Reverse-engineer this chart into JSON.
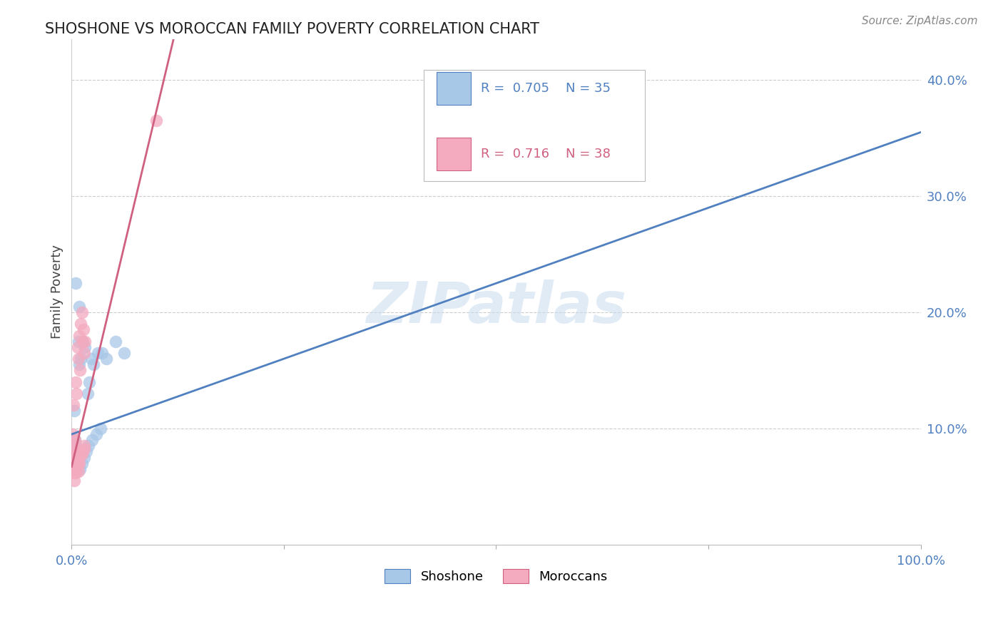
{
  "title": "SHOSHONE VS MOROCCAN FAMILY POVERTY CORRELATION CHART",
  "source": "Source: ZipAtlas.com",
  "ylabel": "Family Poverty",
  "xlim": [
    0.0,
    1.0
  ],
  "ylim": [
    0.0,
    0.435
  ],
  "shoshone_color": "#A8C8E8",
  "moroccan_color": "#F4AABF",
  "shoshone_line_color": "#5080C0",
  "moroccan_line_color": "#D06080",
  "legend_R_shoshone": "0.705",
  "legend_N_shoshone": "35",
  "legend_R_moroccan": "0.716",
  "legend_N_moroccan": "38",
  "watermark_text": "ZIPatlas",
  "background_color": "#FFFFFF",
  "grid_color": "#CCCCCC",
  "shoshone_x": [
    0.003,
    0.005,
    0.004,
    0.009,
    0.013,
    0.011,
    0.008,
    0.005,
    0.016,
    0.021,
    0.026,
    0.031,
    0.019,
    0.023,
    0.036,
    0.041,
    0.052,
    0.062,
    0.009,
    0.004,
    0.003,
    0.007,
    0.01,
    0.012,
    0.015,
    0.017,
    0.02,
    0.024,
    0.029,
    0.034,
    0.006,
    0.004,
    0.003,
    0.007,
    0.005
  ],
  "shoshone_y": [
    0.115,
    0.08,
    0.09,
    0.155,
    0.175,
    0.16,
    0.175,
    0.225,
    0.17,
    0.14,
    0.155,
    0.165,
    0.13,
    0.16,
    0.165,
    0.16,
    0.175,
    0.165,
    0.205,
    0.085,
    0.075,
    0.075,
    0.065,
    0.07,
    0.075,
    0.08,
    0.085,
    0.09,
    0.095,
    0.1,
    0.065,
    0.07,
    0.075,
    0.08,
    0.085
  ],
  "moroccan_x": [
    0.001,
    0.002,
    0.003,
    0.004,
    0.005,
    0.006,
    0.007,
    0.008,
    0.009,
    0.01,
    0.011,
    0.012,
    0.013,
    0.014,
    0.015,
    0.016,
    0.003,
    0.005,
    0.004,
    0.006,
    0.002,
    0.003,
    0.005,
    0.007,
    0.009,
    0.012,
    0.015,
    0.004,
    0.006,
    0.008,
    0.002,
    0.003,
    0.005,
    0.007,
    0.009,
    0.012,
    0.015,
    0.1
  ],
  "moroccan_y": [
    0.095,
    0.12,
    0.08,
    0.09,
    0.14,
    0.13,
    0.17,
    0.16,
    0.18,
    0.15,
    0.19,
    0.2,
    0.175,
    0.185,
    0.165,
    0.175,
    0.085,
    0.065,
    0.068,
    0.072,
    0.065,
    0.062,
    0.068,
    0.072,
    0.075,
    0.08,
    0.085,
    0.075,
    0.078,
    0.063,
    0.075,
    0.055,
    0.062,
    0.068,
    0.07,
    0.078,
    0.082,
    0.365
  ],
  "shoshone_line_x0": 0.0,
  "shoshone_line_y0": 0.095,
  "shoshone_line_x1": 1.0,
  "shoshone_line_y1": 0.355,
  "moroccan_line_x0": 0.0,
  "moroccan_line_y0": 0.067,
  "moroccan_line_x1": 0.12,
  "moroccan_line_y1": 0.435
}
